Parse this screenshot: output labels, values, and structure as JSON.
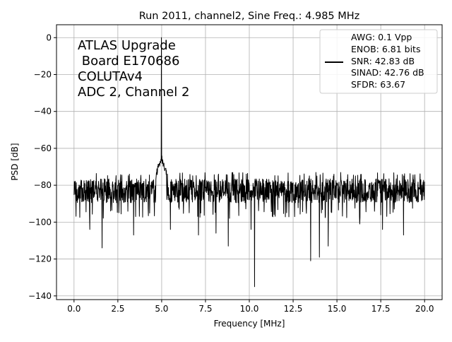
{
  "chart_data": {
    "type": "line",
    "title": "Run 2011, channel2, Sine Freq.: 4.985 MHz",
    "xlabel": "Frequency [MHz]",
    "ylabel": "PSD [dB]",
    "xlim": [
      -1.0,
      21.0
    ],
    "ylim": [
      -142,
      7
    ],
    "xticks": [
      0.0,
      2.5,
      5.0,
      7.5,
      10.0,
      12.5,
      15.0,
      17.5,
      20.0
    ],
    "xtick_labels": [
      "0.0",
      "2.5",
      "5.0",
      "7.5",
      "10.0",
      "12.5",
      "15.0",
      "17.5",
      "20.0"
    ],
    "yticks": [
      0,
      -20,
      -40,
      -60,
      -80,
      -100,
      -120,
      -140
    ],
    "ytick_labels": [
      "0",
      "−20",
      "−40",
      "−60",
      "−80",
      "−100",
      "−120",
      "−140"
    ],
    "grid": true,
    "line_color": "#000000",
    "annotation_lines": [
      "ATLAS Upgrade",
      " Board E170686",
      "COLUTAv4",
      "ADC 2, Channel 2"
    ],
    "legend": {
      "placement": "top-right",
      "lines": [
        "AWG: 0.1 Vpp",
        "ENOB: 6.81 bits",
        "SNR: 42.83 dB",
        "SINAD: 42.76 dB",
        "SFDR: 63.67"
      ]
    },
    "series": [
      {
        "noise_floor_db": -83,
        "noise_band_db": [
          -92,
          -73
        ],
        "peak": {
          "x": 4.985,
          "y": 0
        },
        "dips": [
          {
            "x": 0.9,
            "y": -104
          },
          {
            "x": 1.6,
            "y": -114
          },
          {
            "x": 3.4,
            "y": -107
          },
          {
            "x": 5.5,
            "y": -104
          },
          {
            "x": 7.1,
            "y": -107
          },
          {
            "x": 8.1,
            "y": -106
          },
          {
            "x": 8.8,
            "y": -113
          },
          {
            "x": 10.1,
            "y": -104
          },
          {
            "x": 10.3,
            "y": -135
          },
          {
            "x": 13.5,
            "y": -121
          },
          {
            "x": 14.0,
            "y": -119
          },
          {
            "x": 14.5,
            "y": -113
          },
          {
            "x": 16.3,
            "y": -101
          },
          {
            "x": 17.6,
            "y": -104
          },
          {
            "x": 18.8,
            "y": -107
          }
        ]
      }
    ]
  }
}
